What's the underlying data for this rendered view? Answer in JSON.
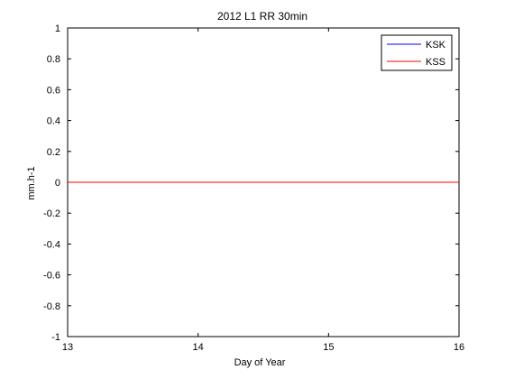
{
  "chart_data": {
    "type": "line",
    "title": "2012 L1 RR 30min",
    "xlabel": "Day of Year",
    "ylabel": "mm.h-1",
    "xlim": [
      13,
      16
    ],
    "ylim": [
      -1,
      1
    ],
    "xticks": [
      13,
      14,
      15,
      16
    ],
    "yticks": [
      -1,
      -0.8,
      -0.6,
      -0.4,
      -0.2,
      0,
      0.2,
      0.4,
      0.6,
      0.8,
      1
    ],
    "xtick_labels": [
      "13",
      "14",
      "15",
      "16"
    ],
    "ytick_labels": [
      "-1",
      "-0.8",
      "-0.6",
      "-0.4",
      "-0.2",
      "0",
      "0.2",
      "0.4",
      "0.6",
      "0.8",
      "1"
    ],
    "legend_position": "top-right",
    "grid": false,
    "series": [
      {
        "name": "KSK",
        "color": "#0000ff",
        "x": [
          13,
          16
        ],
        "y": [
          0,
          0
        ]
      },
      {
        "name": "KSS",
        "color": "#ff0000",
        "x": [
          13,
          16
        ],
        "y": [
          0,
          0
        ]
      }
    ]
  }
}
